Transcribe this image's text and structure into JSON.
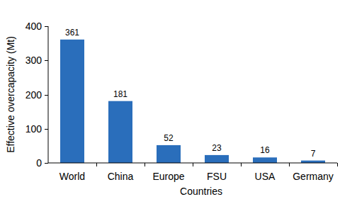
{
  "chart_data": {
    "type": "bar",
    "x_label": "Countries",
    "y_label": "Effective overcapacity (Mt)",
    "categories": [
      "World",
      "China",
      "Europe",
      "FSU",
      "USA",
      "Germany"
    ],
    "values": [
      361,
      181,
      52,
      23,
      16,
      7
    ],
    "color": "#2a6ebb",
    "ylim": [
      0,
      400
    ],
    "yticks": [
      0,
      100,
      200,
      300,
      400
    ],
    "grid": false,
    "data_labels": true
  }
}
